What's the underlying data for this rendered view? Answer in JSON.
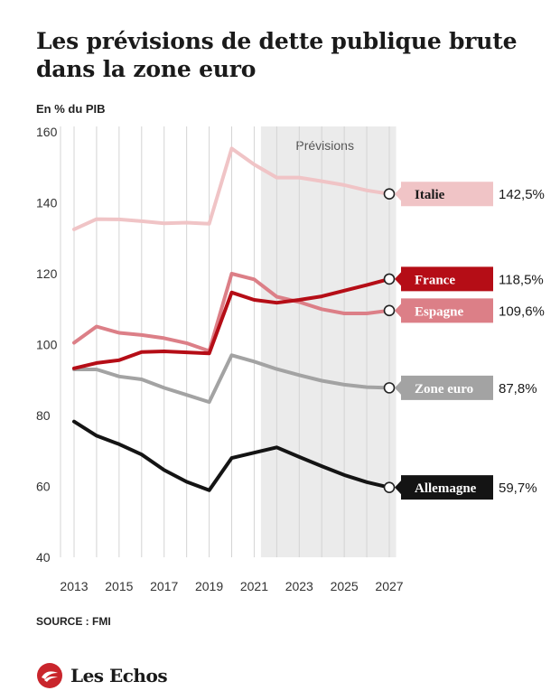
{
  "header": {
    "title": "Les prévisions de dette publique brute dans la zone euro",
    "unit": "En % du PIB"
  },
  "footer": {
    "source": "SOURCE : FMI",
    "brand": "Les Echos"
  },
  "colors": {
    "italie": "#f0c4c6",
    "france": "#b50d16",
    "espagne": "#dc7f87",
    "zone_euro": "#a3a3a3",
    "allemagne": "#141414",
    "forecast_band": "#ebebeb",
    "grid": "#d4d4d4",
    "brand_red": "#c9252c"
  },
  "chart_data": {
    "type": "line",
    "title": "Les prévisions de dette publique brute dans la zone euro",
    "ylabel": "En % du PIB",
    "xlabel": "",
    "x": [
      2013,
      2014,
      2015,
      2016,
      2017,
      2018,
      2019,
      2020,
      2021,
      2022,
      2023,
      2024,
      2025,
      2026,
      2027
    ],
    "xticks": [
      "2013",
      "2015",
      "2017",
      "2019",
      "2021",
      "2023",
      "2025",
      "2027"
    ],
    "yticks": [
      "40",
      "60",
      "80",
      "100",
      "120",
      "140",
      "160"
    ],
    "ylim": [
      40,
      160
    ],
    "xlim": [
      2013,
      2027
    ],
    "grid": "vertical",
    "forecast": {
      "label": "Prévisions",
      "from": 2021.3,
      "to": 2027.3
    },
    "series": [
      {
        "key": "italie",
        "name": "Italie",
        "end_label": "142,5%",
        "values": [
          132.5,
          135.4,
          135.3,
          134.8,
          134.2,
          134.4,
          134.1,
          155.3,
          150.8,
          147.1,
          147.1,
          146.1,
          145.0,
          143.5,
          142.5
        ]
      },
      {
        "key": "espagne",
        "name": "Espagne",
        "end_label": "109,6%",
        "values": [
          100.5,
          105.1,
          103.3,
          102.7,
          101.8,
          100.4,
          98.2,
          120.0,
          118.4,
          113.5,
          112.0,
          110.0,
          108.8,
          108.8,
          109.6
        ]
      },
      {
        "key": "zone_euro",
        "name": "Zone euro",
        "end_label": "87,8%",
        "values": [
          93.0,
          93.0,
          91.0,
          90.2,
          87.8,
          85.8,
          83.8,
          97.0,
          95.2,
          93.1,
          91.4,
          89.8,
          88.7,
          88.0,
          87.8
        ]
      },
      {
        "key": "france",
        "name": "France",
        "end_label": "118,5%",
        "values": [
          93.3,
          94.8,
          95.6,
          97.9,
          98.1,
          97.8,
          97.5,
          114.7,
          112.6,
          111.8,
          112.6,
          113.6,
          115.2,
          116.8,
          118.5
        ]
      },
      {
        "key": "allemagne",
        "name": "Allemagne",
        "end_label": "59,7%",
        "values": [
          78.3,
          74.3,
          71.9,
          69.0,
          64.6,
          61.3,
          58.9,
          68.0,
          69.5,
          71.0,
          68.3,
          65.7,
          63.2,
          61.2,
          59.7
        ]
      }
    ],
    "labels": [
      {
        "key": "italie",
        "name": "Italie",
        "value": "142,5%",
        "fill": "#f0c4c6",
        "text_color": "#1a1a1a",
        "value_at": 142.5
      },
      {
        "key": "france",
        "name": "France",
        "value": "118,5%",
        "fill": "#b50d16",
        "text_color": "#ffffff",
        "value_at": 118.5
      },
      {
        "key": "espagne",
        "name": "Espagne",
        "value": "109,6%",
        "fill": "#dc7f87",
        "text_color": "#ffffff",
        "value_at": 109.6
      },
      {
        "key": "zone_euro",
        "name": "Zone euro",
        "value": "87,8%",
        "fill": "#a3a3a3",
        "text_color": "#ffffff",
        "value_at": 87.8
      },
      {
        "key": "allemagne",
        "name": "Allemagne",
        "value": "59,7%",
        "fill": "#141414",
        "text_color": "#ffffff",
        "value_at": 59.7
      }
    ]
  }
}
